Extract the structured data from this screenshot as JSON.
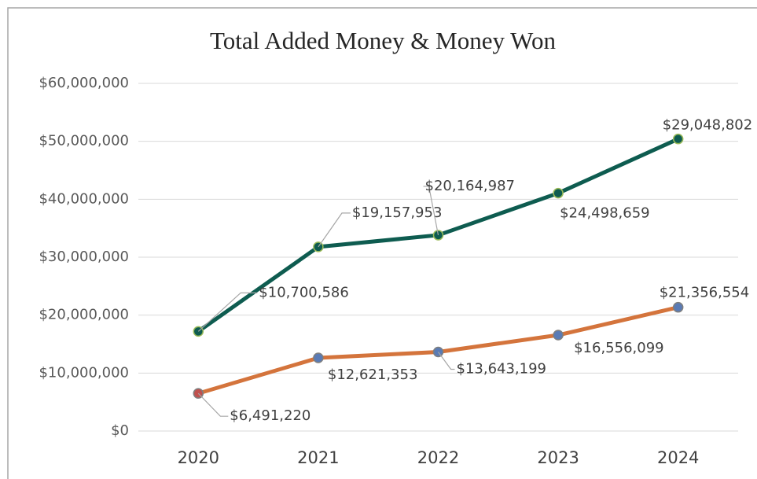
{
  "chart_data": {
    "type": "line",
    "stacked": true,
    "title": "Total Added Money & Money Won",
    "categories": [
      "2020",
      "2021",
      "2022",
      "2023",
      "2024"
    ],
    "series": [
      {
        "color": "#d4743c",
        "marker_color": "#5a7bb5",
        "marker_colors": [
          "#c0504d",
          "#5a7bb5",
          "#5a7bb5",
          "#5a7bb5",
          "#5a7bb5"
        ],
        "values": [
          6491220,
          12621353,
          13643199,
          16556099,
          21356554
        ],
        "value_labels": [
          "$6,491,220",
          "$12,621,353",
          "$13,643,199",
          "$16,556,099",
          "$21,356,554"
        ]
      },
      {
        "color": "#0e5c50",
        "marker_color": "#0e5c50",
        "marker_edge": "#9bbb59",
        "values": [
          10700586,
          19157953,
          20164987,
          24498659,
          29048802
        ],
        "value_labels": [
          "$10,700,586",
          "$19,157,953",
          "$20,164,987",
          "$24,498,659",
          "$29,048,802"
        ]
      }
    ],
    "ylim": [
      0,
      60000000
    ],
    "yticks": [
      {
        "value": 0,
        "label": "$0"
      },
      {
        "value": 10000000,
        "label": "$10,000,000"
      },
      {
        "value": 20000000,
        "label": "$20,000,000"
      },
      {
        "value": 30000000,
        "label": "$30,000,000"
      },
      {
        "value": 40000000,
        "label": "$40,000,000"
      },
      {
        "value": 50000000,
        "label": "$50,000,000"
      },
      {
        "value": 60000000,
        "label": "$60,000,000"
      }
    ],
    "grid": true
  }
}
